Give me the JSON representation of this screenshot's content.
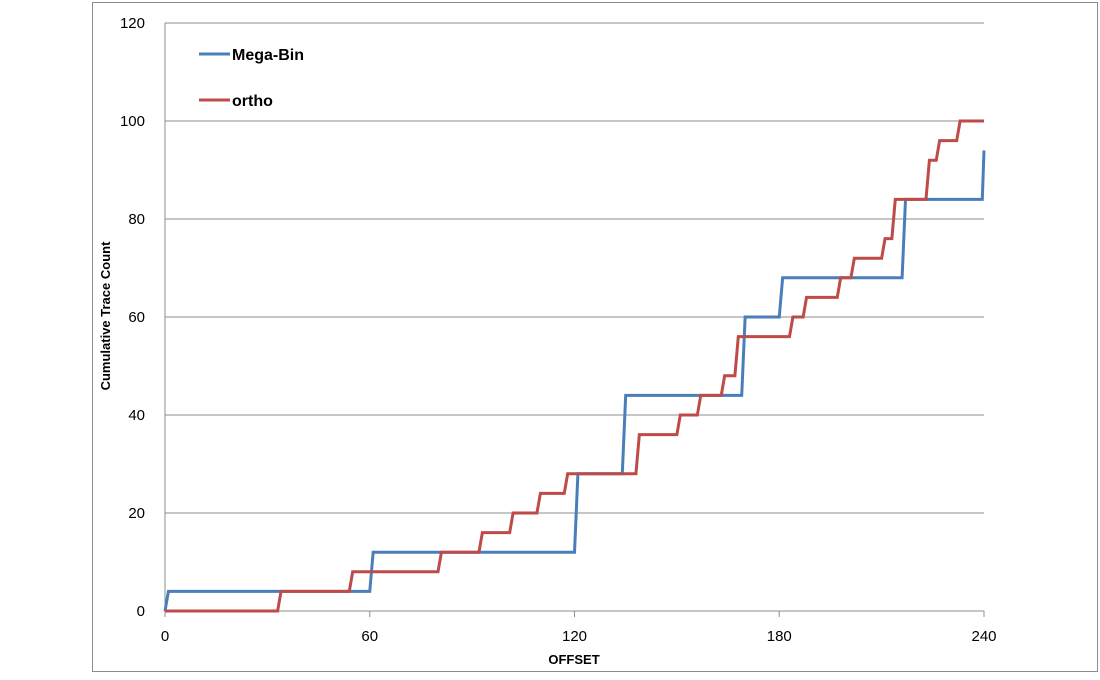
{
  "chart_data": {
    "type": "line",
    "xlabel": "OFFSET",
    "ylabel": "Cumulative Trace Count",
    "xlim": [
      0,
      240
    ],
    "ylim": [
      0,
      120
    ],
    "xticks": [
      0,
      60,
      120,
      180,
      240
    ],
    "yticks": [
      0,
      20,
      40,
      60,
      80,
      100,
      120
    ],
    "grid": "horizontal",
    "legend": "top-left",
    "step": true,
    "series": [
      {
        "name": "Mega-Bin",
        "color": "#4a7ebb",
        "x": [
          0,
          1,
          60,
          61,
          120,
          121,
          134,
          135,
          169,
          170,
          180,
          181,
          216,
          217,
          239.5,
          240
        ],
        "y": [
          0,
          4,
          4,
          12,
          12,
          28,
          28,
          44,
          44,
          60,
          60,
          68,
          68,
          84,
          84,
          94
        ]
      },
      {
        "name": "ortho",
        "color": "#be4b48",
        "x": [
          0,
          33,
          34,
          54,
          55,
          80,
          81,
          92,
          93,
          101,
          102,
          109,
          110,
          117,
          118,
          138,
          139,
          150,
          151,
          156,
          157,
          163,
          164,
          167,
          168,
          183,
          184,
          187,
          188,
          197,
          198,
          201,
          202,
          210,
          211,
          213,
          214,
          223,
          224,
          226,
          227,
          232,
          233,
          235,
          236,
          240
        ],
        "y": [
          0,
          0,
          4,
          4,
          8,
          8,
          12,
          12,
          16,
          16,
          20,
          20,
          24,
          24,
          28,
          28,
          36,
          36,
          40,
          40,
          44,
          44,
          48,
          48,
          56,
          56,
          60,
          60,
          64,
          64,
          68,
          68,
          72,
          72,
          76,
          76,
          84,
          84,
          92,
          92,
          96,
          96,
          100,
          100,
          100,
          100
        ]
      }
    ]
  }
}
